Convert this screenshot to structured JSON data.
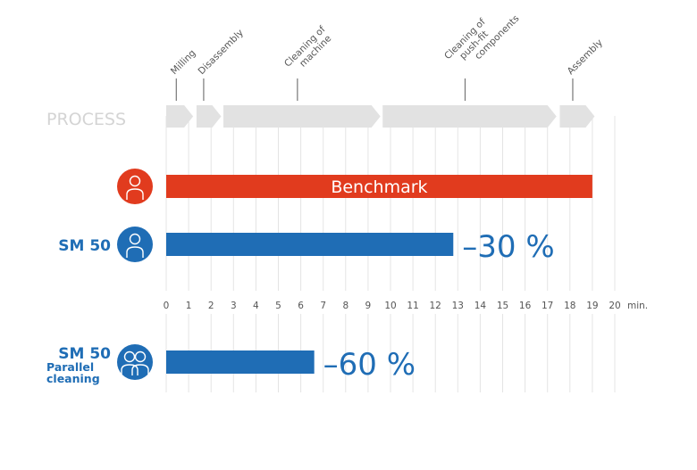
{
  "chart_data": {
    "type": "bar",
    "orientation": "horizontal",
    "process": {
      "label": "PROCESS",
      "steps": [
        {
          "name": "Milling",
          "start": 0,
          "end": 1.2
        },
        {
          "name": "Disassembly",
          "start": 1.35,
          "end": 2.45
        },
        {
          "name": "Cleaning of machine",
          "start": 2.55,
          "end": 9.55
        },
        {
          "name": "Cleaning of push-fit components",
          "start": 9.65,
          "end": 17.4
        },
        {
          "name": "Assembly",
          "start": 17.55,
          "end": 19.1
        }
      ]
    },
    "series": [
      {
        "row_label": "",
        "sub_label": "",
        "bar_label": "Benchmark",
        "annotation": "",
        "value": 19,
        "color": "#e13b1e",
        "icon": "person-icon"
      },
      {
        "row_label": "SM 50",
        "sub_label": "",
        "bar_label": "",
        "annotation": "–30 %",
        "value": 12.8,
        "color": "#1f6db5",
        "icon": "person-icon"
      },
      {
        "row_label": "SM 50",
        "sub_label": "Parallel cleaning",
        "bar_label": "",
        "annotation": "–60 %",
        "value": 6.6,
        "color": "#1f6db5",
        "icon": "two-persons-icon"
      }
    ],
    "x_ticks": [
      "0",
      "1",
      "2",
      "3",
      "4",
      "5",
      "6",
      "7",
      "8",
      "9",
      "10",
      "11",
      "12",
      "13",
      "14",
      "15",
      "16",
      "17",
      "18",
      "19",
      "20"
    ],
    "xlabel": "min.",
    "xlim": [
      0,
      20
    ],
    "grid": true,
    "colors": {
      "process": "#e2e2e2",
      "grid": "#e4e4e4",
      "tick_text": "#555555"
    }
  }
}
